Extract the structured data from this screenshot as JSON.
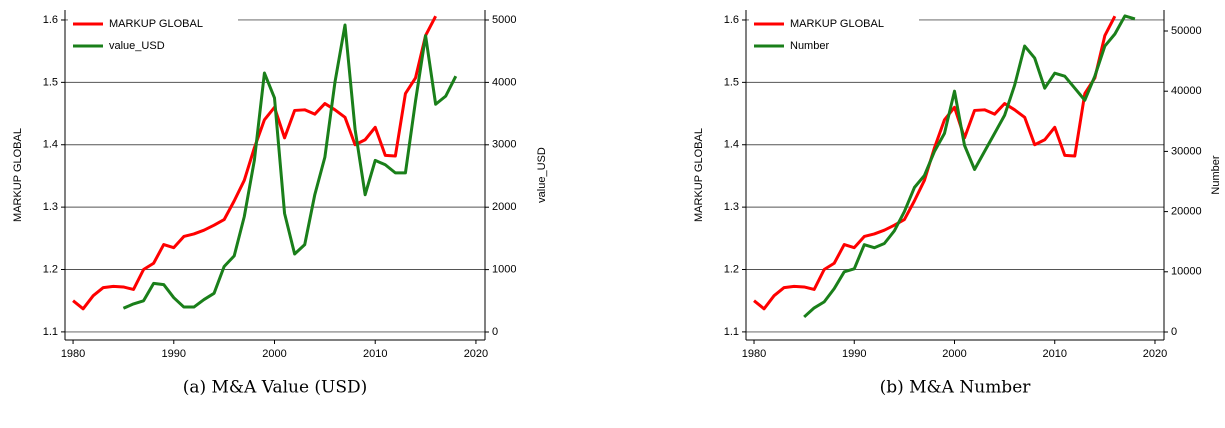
{
  "chart_data": [
    {
      "type": "line",
      "caption": "(a) M&A Value (USD)",
      "ylabel": "MARKUP GLOBAL",
      "y2label": "value_USD",
      "xlim": [
        1979.2,
        2020.9
      ],
      "xticks": [
        1980,
        1990,
        2000,
        2010,
        2020
      ],
      "ylim": [
        1.087,
        1.616
      ],
      "yticks": [
        1.1,
        1.2,
        1.3,
        1.4,
        1.5,
        1.6
      ],
      "y2lim": [
        -128,
        5160
      ],
      "y2ticks": [
        0,
        1000,
        2000,
        3000,
        4000,
        5000
      ],
      "grid": true,
      "series": [
        {
          "name": "MARKUP GLOBAL",
          "color": "#ff0000",
          "x": [
            1980,
            1981,
            1982,
            1983,
            1984,
            1985,
            1986,
            1987,
            1988,
            1989,
            1990,
            1991,
            1992,
            1993,
            1994,
            1995,
            1996,
            1997,
            1998,
            1999,
            2000,
            2001,
            2002,
            2003,
            2004,
            2005,
            2006,
            2007,
            2008,
            2009,
            2010,
            2011,
            2012,
            2013,
            2014,
            2015,
            2016
          ],
          "values": [
            1.15,
            1.137,
            1.158,
            1.171,
            1.173,
            1.172,
            1.168,
            1.2,
            1.21,
            1.24,
            1.235,
            1.253,
            1.257,
            1.263,
            1.271,
            1.28,
            1.31,
            1.343,
            1.395,
            1.44,
            1.46,
            1.411,
            1.455,
            1.456,
            1.449,
            1.466,
            1.456,
            1.444,
            1.4,
            1.408,
            1.428,
            1.383,
            1.382,
            1.482,
            1.507,
            1.575,
            1.606
          ]
        },
        {
          "name": "value_USD",
          "color": "#1a7f1a",
          "axis": "y2",
          "x": [
            1985,
            1986,
            1987,
            1988,
            1989,
            1990,
            1991,
            1992,
            1993,
            1994,
            1995,
            1996,
            1997,
            1998,
            1999,
            2000,
            2001,
            2002,
            2003,
            2004,
            2005,
            2006,
            2007,
            2008,
            2009,
            2010,
            2011,
            2012,
            2013,
            2014,
            2015,
            2016,
            2017,
            2018
          ],
          "values": [
            380,
            450,
            500,
            780,
            760,
            550,
            400,
            400,
            520,
            620,
            1050,
            1220,
            1850,
            2750,
            4150,
            3750,
            1900,
            1250,
            1400,
            2200,
            2800,
            4000,
            4920,
            3250,
            2200,
            2750,
            2680,
            2550,
            2550,
            3700,
            4750,
            3650,
            3780,
            4100
          ]
        }
      ]
    },
    {
      "type": "line",
      "caption": "(b) M&A Number",
      "ylabel": "MARKUP GLOBAL",
      "y2label": "Number",
      "xlim": [
        1979.2,
        2020.9
      ],
      "xticks": [
        1980,
        1990,
        2000,
        2010,
        2020
      ],
      "ylim": [
        1.087,
        1.616
      ],
      "yticks": [
        1.1,
        1.2,
        1.3,
        1.4,
        1.5,
        1.6
      ],
      "y2lim": [
        -1330,
        53490
      ],
      "y2ticks": [
        0,
        10000,
        20000,
        30000,
        40000,
        50000
      ],
      "grid": true,
      "series": [
        {
          "name": "MARKUP GLOBAL",
          "color": "#ff0000",
          "x": [
            1980,
            1981,
            1982,
            1983,
            1984,
            1985,
            1986,
            1987,
            1988,
            1989,
            1990,
            1991,
            1992,
            1993,
            1994,
            1995,
            1996,
            1997,
            1998,
            1999,
            2000,
            2001,
            2002,
            2003,
            2004,
            2005,
            2006,
            2007,
            2008,
            2009,
            2010,
            2011,
            2012,
            2013,
            2014,
            2015,
            2016
          ],
          "values": [
            1.15,
            1.137,
            1.158,
            1.171,
            1.173,
            1.172,
            1.168,
            1.2,
            1.21,
            1.24,
            1.235,
            1.253,
            1.257,
            1.263,
            1.271,
            1.28,
            1.31,
            1.343,
            1.395,
            1.44,
            1.46,
            1.411,
            1.455,
            1.456,
            1.449,
            1.466,
            1.456,
            1.444,
            1.4,
            1.408,
            1.428,
            1.383,
            1.382,
            1.482,
            1.507,
            1.575,
            1.606
          ]
        },
        {
          "name": "Number",
          "color": "#1a7f1a",
          "axis": "y2",
          "x": [
            1985,
            1986,
            1987,
            1988,
            1989,
            1990,
            1991,
            1992,
            1993,
            1994,
            1995,
            1996,
            1997,
            1998,
            1999,
            2000,
            2001,
            2002,
            2003,
            2004,
            2005,
            2006,
            2007,
            2008,
            2009,
            2010,
            2011,
            2012,
            2013,
            2014,
            2015,
            2016,
            2017,
            2018
          ],
          "values": [
            2500,
            4000,
            5000,
            7200,
            10000,
            10500,
            14500,
            14000,
            14700,
            16800,
            20000,
            24000,
            26000,
            30000,
            33000,
            40000,
            31000,
            27000,
            30000,
            33000,
            36000,
            41000,
            47500,
            45500,
            40500,
            43000,
            42500,
            40500,
            38500,
            42500,
            47500,
            49500,
            52500,
            52000
          ]
        }
      ]
    }
  ]
}
